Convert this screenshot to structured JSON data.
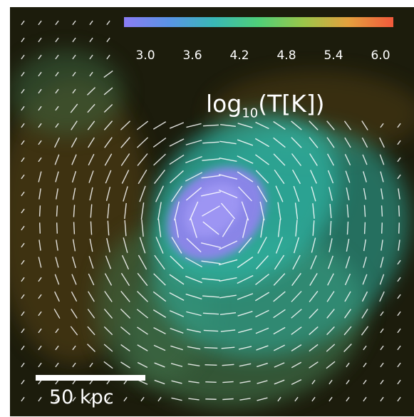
{
  "figure": {
    "colorbar": {
      "ticks": [
        "3.0",
        "3.6",
        "4.2",
        "4.8",
        "5.4",
        "6.0"
      ],
      "label_prefix": "log",
      "label_sub": "10",
      "label_suffix": "(T[K])",
      "colors": [
        "#8a7cf4",
        "#5a94e6",
        "#39b8b6",
        "#4fcf78",
        "#9bc64a",
        "#e4a03e",
        "#f25a3c"
      ]
    },
    "scalebar": {
      "label": "50 kpc"
    },
    "image": {
      "background": "#1c1c0c",
      "hot_core_color": "#8f84ec",
      "warm_gas_color": "#2fb3a3",
      "filament_color": "#3c6a44",
      "dust_color": "#5a4414",
      "arrow_color": "#ffffff"
    }
  }
}
